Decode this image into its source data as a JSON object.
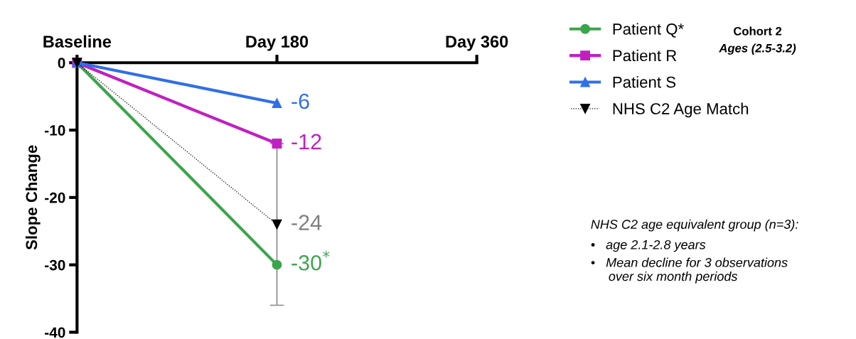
{
  "chart_data": {
    "type": "line",
    "ylabel": "Slope Change",
    "categories": [
      "Baseline",
      "Day 180",
      "Day 360"
    ],
    "ylim": [
      -40,
      0
    ],
    "yticks": [
      -40,
      -30,
      -20,
      -10,
      0
    ],
    "grid": false,
    "legend": "top right",
    "series": [
      {
        "name": "Patient Q*",
        "color": "#3ba54b",
        "marker": "circle",
        "line_style": "solid",
        "values": [
          0,
          -30,
          null
        ],
        "value_labels": [
          null,
          "-30$^{*}$",
          null
        ]
      },
      {
        "name": "Patient R",
        "color": "#c21fc2",
        "marker": "square",
        "line_style": "solid",
        "values": [
          0,
          -12,
          null
        ],
        "value_labels": [
          null,
          "-12",
          null
        ]
      },
      {
        "name": "Patient S",
        "color": "#2f6fe8",
        "marker": "triangle",
        "line_style": "solid",
        "values": [
          0,
          -6,
          null
        ],
        "value_labels": [
          null,
          "-6",
          null
        ]
      },
      {
        "name": "NHS C2 Age Match",
        "color": "#000000",
        "marker": "triangle-down",
        "line_style": "dotted",
        "values": [
          0,
          -24,
          null
        ],
        "errors": [
          null,
          12,
          null
        ],
        "value_labels": [
          null,
          "-24",
          null
        ]
      }
    ],
    "annotations": [
      "Cohort 2",
      "Ages (2.5-3.2)",
      "NHS C2 age equivalent group (n=3):",
      "•   age 2.1-2.8 years",
      "•   Mean decline for 3 observations\n     over six month periods"
    ]
  }
}
